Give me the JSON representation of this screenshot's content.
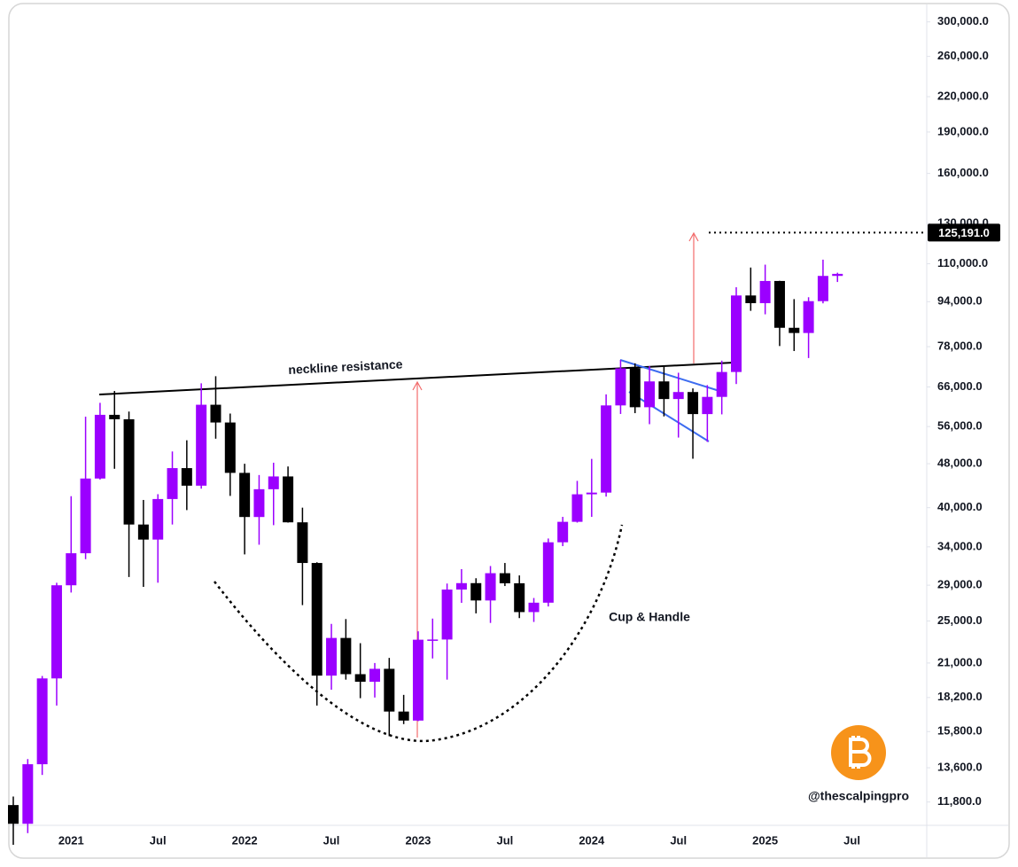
{
  "chart_data": {
    "type": "candlestick",
    "categories": [
      null,
      null,
      null,
      null,
      "2021",
      null,
      null,
      null,
      null,
      null,
      "Jul",
      null,
      null,
      null,
      null,
      null,
      "2022",
      null,
      null,
      null,
      null,
      null,
      "Jul",
      null,
      null,
      null,
      null,
      null,
      "2023",
      null,
      null,
      null,
      null,
      null,
      "Jul",
      null,
      null,
      null,
      null,
      null,
      "2024",
      null,
      null,
      null,
      null,
      null,
      "Jul",
      null,
      null,
      null,
      null,
      null,
      "2025",
      null,
      null,
      null,
      null,
      null,
      "Jul"
    ],
    "open": [
      11650,
      10780,
      13800,
      19700,
      28990,
      33110,
      45140,
      58790,
      57720,
      37300,
      35040,
      41460,
      47130,
      43820,
      61300,
      56950,
      46210,
      38480,
      43180,
      45530,
      37640,
      31800,
      19930,
      23300,
      20050,
      19430,
      20500,
      17170,
      16540,
      23130,
      23150,
      28480,
      29250,
      27220,
      30480,
      29230,
      25940,
      26970,
      34650,
      37720,
      42280,
      42580,
      61130,
      71290,
      60670,
      67530,
      62770,
      64620,
      58970,
      63330,
      70220,
      96450,
      93430,
      102430,
      84350,
      82550,
      94200,
      104600,
      null
    ],
    "high": [
      12070,
      14100,
      19900,
      29300,
      41950,
      58350,
      61790,
      64900,
      59600,
      41300,
      42300,
      50500,
      52900,
      67000,
      69000,
      59100,
      47990,
      45800,
      48200,
      47450,
      40000,
      31900,
      24700,
      25200,
      22800,
      21000,
      21450,
      18400,
      23950,
      25250,
      29200,
      31000,
      29850,
      31400,
      31800,
      30200,
      27500,
      35200,
      38500,
      44700,
      48970,
      64000,
      73800,
      72800,
      71950,
      72000,
      70000,
      65600,
      66500,
      73600,
      99800,
      108300,
      109600,
      102500,
      95000,
      95750,
      111900,
      106000,
      null
    ],
    "low": [
      9880,
      10370,
      13200,
      17600,
      28130,
      32300,
      44950,
      47000,
      30000,
      28800,
      29300,
      37300,
      39600,
      43280,
      53250,
      42000,
      32950,
      34300,
      37200,
      37600,
      26700,
      17600,
      18800,
      19600,
      18150,
      18200,
      15500,
      16300,
      16500,
      21400,
      19600,
      26950,
      25800,
      24800,
      28900,
      25300,
      24900,
      26550,
      34100,
      37600,
      38500,
      41880,
      59000,
      59200,
      56550,
      58400,
      53500,
      49000,
      52550,
      58900,
      66800,
      90500,
      89200,
      78200,
      76600,
      74400,
      93350,
      102000,
      null
    ],
    "close": [
      10780,
      13800,
      19700,
      28990,
      33110,
      45140,
      58790,
      57720,
      37300,
      35040,
      41460,
      47130,
      43820,
      61300,
      56950,
      46210,
      38480,
      43180,
      45530,
      37640,
      31800,
      19930,
      23300,
      20050,
      19430,
      20500,
      17170,
      16540,
      23130,
      23150,
      28480,
      29250,
      27220,
      30480,
      29230,
      25940,
      26970,
      34650,
      37720,
      42280,
      42580,
      61130,
      71290,
      60670,
      67530,
      62770,
      64620,
      58970,
      63330,
      70220,
      96450,
      93430,
      102430,
      84350,
      82550,
      94200,
      104600,
      105500,
      null
    ],
    "up_color": "#9b00ff",
    "down_color": "#000000",
    "log_scale": true,
    "ylim": [
      10750,
      319000
    ],
    "yticks": [
      {
        "value": 300000,
        "label": "300,000.0"
      },
      {
        "value": 260000,
        "label": "260,000.0"
      },
      {
        "value": 220000,
        "label": "220,000.0"
      },
      {
        "value": 190000,
        "label": "190,000.0"
      },
      {
        "value": 160000,
        "label": "160,000.0"
      },
      {
        "value": 130000,
        "label": "130,000.0"
      },
      {
        "value": 110000,
        "label": "110,000.0"
      },
      {
        "value": 94000,
        "label": "94,000.0"
      },
      {
        "value": 78000,
        "label": "78,000.0"
      },
      {
        "value": 66000,
        "label": "66,000.0"
      },
      {
        "value": 56000,
        "label": "56,000.0"
      },
      {
        "value": 48000,
        "label": "48,000.0"
      },
      {
        "value": 40000,
        "label": "40,000.0"
      },
      {
        "value": 34000,
        "label": "34,000.0"
      },
      {
        "value": 29000,
        "label": "29,000.0"
      },
      {
        "value": 25000,
        "label": "25,000.0"
      },
      {
        "value": 21000,
        "label": "21,000.0"
      },
      {
        "value": 18200,
        "label": "18,200.0"
      },
      {
        "value": 15800,
        "label": "15,800.0"
      },
      {
        "value": 13600,
        "label": "13,600.0"
      },
      {
        "value": 11800,
        "label": "11,800.0"
      }
    ],
    "price_line": {
      "value": 125191,
      "label": "125,191.0"
    },
    "annotations": [
      "neckline resistance",
      "Cup & Handle"
    ],
    "watermark": "@thescalpingpro"
  }
}
